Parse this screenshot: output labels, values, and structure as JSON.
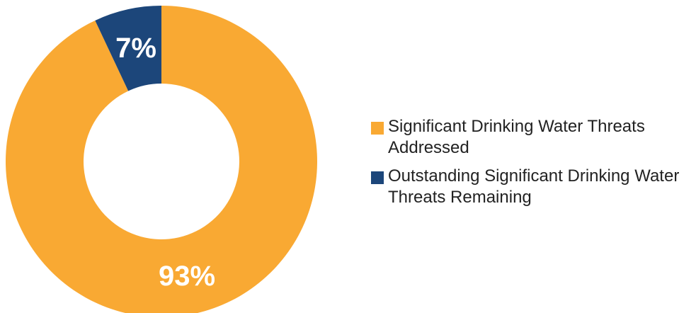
{
  "chart_data": {
    "type": "pie",
    "variant": "donut",
    "categories": [
      "Significant Drinking Water Threats Addressed",
      "Outstanding Significant Drinking Water Threats Remaining"
    ],
    "values": [
      93,
      7
    ],
    "value_labels": [
      "93%",
      "7%"
    ],
    "colors": [
      "#F9A933",
      "#1C467A"
    ],
    "title": "",
    "legend_position": "right"
  },
  "legend": {
    "items": [
      {
        "label": "Significant Drinking Water Threats Addressed",
        "color": "#F9A933"
      },
      {
        "label": "Outstanding Significant Drinking Water Threats Remaining",
        "color": "#1C467A"
      }
    ]
  }
}
